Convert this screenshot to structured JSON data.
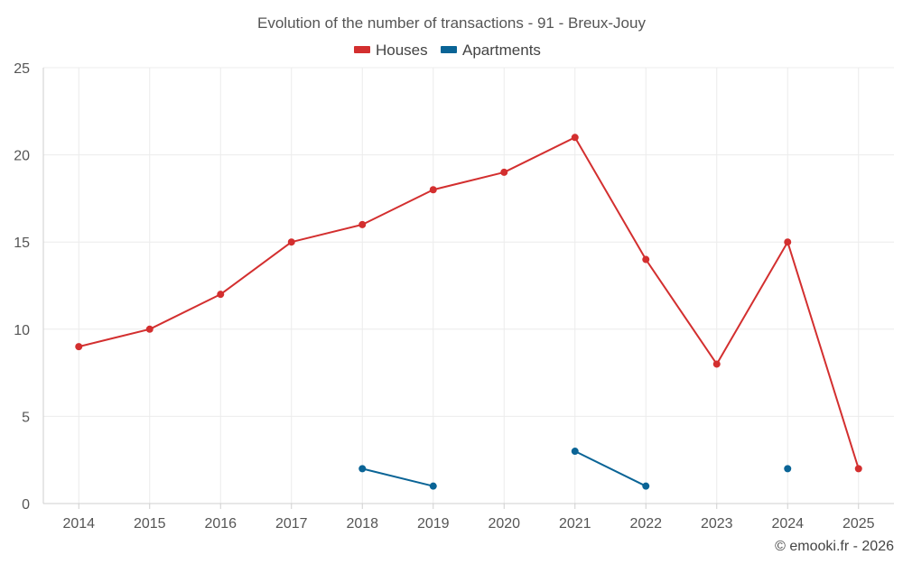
{
  "chart_data": {
    "type": "line",
    "title": "Evolution of the number of transactions - 91 - Breux-Jouy",
    "categories": [
      "2014",
      "2015",
      "2016",
      "2017",
      "2018",
      "2019",
      "2020",
      "2021",
      "2022",
      "2023",
      "2024",
      "2025"
    ],
    "ylim": [
      0,
      25
    ],
    "yticks": [
      0,
      5,
      10,
      15,
      20,
      25
    ],
    "grid": true,
    "legend_position": "top-center",
    "series": [
      {
        "name": "Houses",
        "color": "#d32f2f",
        "values": [
          9,
          10,
          12,
          15,
          16,
          18,
          19,
          21,
          14,
          8,
          15,
          2
        ]
      },
      {
        "name": "Apartments",
        "color": "#0a6496",
        "values": [
          null,
          null,
          null,
          null,
          2,
          1,
          null,
          3,
          1,
          null,
          2,
          null
        ]
      }
    ],
    "xlabel": "",
    "ylabel": ""
  },
  "credit": "© emooki.fr - 2026"
}
